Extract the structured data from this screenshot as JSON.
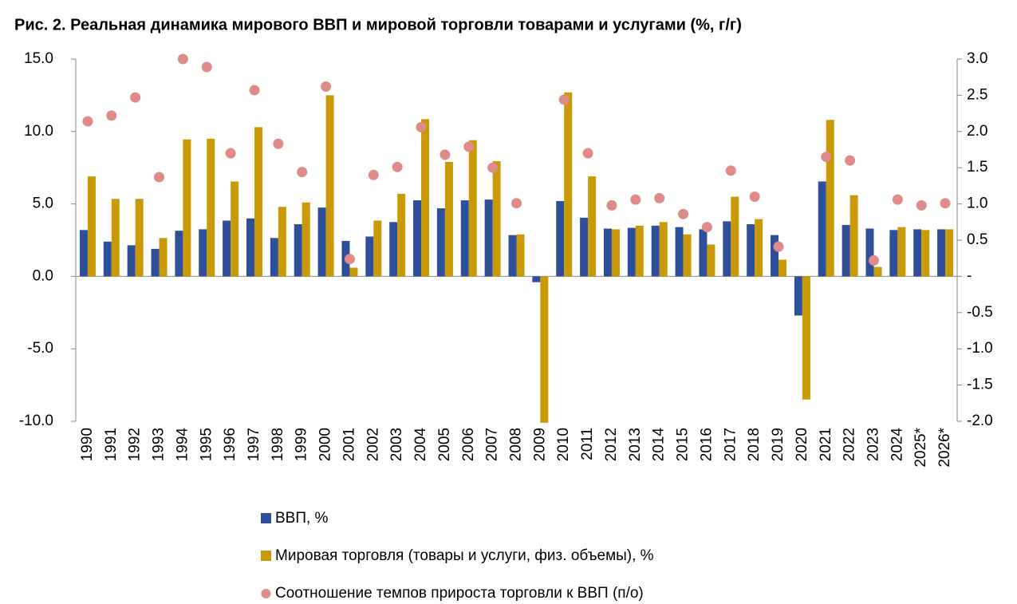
{
  "chart_data": {
    "type": "bar",
    "title": "Рис. 2. Реальная динамика мирового ВВП и мировой торговли товарами и услугами (%, г/г)",
    "categories": [
      "1990",
      "1991",
      "1992",
      "1993",
      "1994",
      "1995",
      "1996",
      "1997",
      "1998",
      "1999",
      "2000",
      "2001",
      "2002",
      "2003",
      "2004",
      "2005",
      "2006",
      "2007",
      "2008",
      "2009",
      "2010",
      "2011",
      "2012",
      "2013",
      "2014",
      "2015",
      "2016",
      "2017",
      "2018",
      "2019",
      "2020",
      "2021",
      "2022",
      "2023",
      "2024",
      "2025*",
      "2026*"
    ],
    "series": [
      {
        "name": "ВВП, %",
        "type": "bar",
        "color": "#2f4f9a",
        "values": [
          3.2,
          2.4,
          2.15,
          1.9,
          3.15,
          3.25,
          3.85,
          4.0,
          2.65,
          3.6,
          4.75,
          2.45,
          2.75,
          3.75,
          5.25,
          4.7,
          5.25,
          5.3,
          2.85,
          -0.4,
          5.2,
          4.05,
          3.3,
          3.35,
          3.5,
          3.4,
          3.25,
          3.8,
          3.6,
          2.85,
          -2.7,
          6.55,
          3.55,
          3.3,
          3.2,
          3.25,
          3.25
        ]
      },
      {
        "name": "Мировая торговля (товары и услуги, физ. объемы), %",
        "type": "bar",
        "color": "#c99a06",
        "values": [
          6.9,
          5.35,
          5.35,
          2.65,
          9.45,
          9.5,
          6.55,
          10.3,
          4.8,
          5.1,
          12.5,
          0.6,
          3.85,
          5.7,
          10.85,
          7.9,
          9.4,
          7.95,
          2.9,
          -10.1,
          12.7,
          6.9,
          3.25,
          3.5,
          3.75,
          2.9,
          2.2,
          5.5,
          3.95,
          1.15,
          -8.5,
          10.8,
          5.6,
          0.65,
          3.4,
          3.2,
          3.25
        ]
      },
      {
        "name": "Соотношение темпов прироста торговли к ВВП (п/о)",
        "type": "scatter",
        "axis": "y2",
        "color": "#e08a8a",
        "values": [
          2.14,
          2.22,
          2.47,
          1.37,
          3.0,
          2.89,
          1.7,
          2.57,
          1.83,
          1.44,
          2.62,
          0.24,
          1.4,
          1.51,
          2.06,
          1.68,
          1.79,
          1.5,
          1.01,
          null,
          2.44,
          1.7,
          0.98,
          1.06,
          1.08,
          0.86,
          0.68,
          1.46,
          1.1,
          0.41,
          null,
          1.65,
          1.6,
          0.22,
          1.06,
          0.98,
          1.01
        ]
      }
    ],
    "ylim": [
      -10,
      15
    ],
    "yticks": [
      {
        "value": 15,
        "label": "15.0"
      },
      {
        "value": 10,
        "label": "10.0"
      },
      {
        "value": 5,
        "label": "5.0"
      },
      {
        "value": 0,
        "label": "0.0"
      },
      {
        "value": -5,
        "label": "-5.0"
      },
      {
        "value": -10,
        "label": "-10.0"
      }
    ],
    "y2lim": [
      -2,
      3
    ],
    "y2ticks": [
      {
        "value": 3,
        "label": "3.0"
      },
      2.5,
      {
        "value": 2,
        "label": "2.0"
      },
      1.5,
      {
        "value": 1,
        "label": "1.0"
      },
      0.5,
      {
        "value": 0,
        "label": "-"
      },
      -0.5,
      {
        "value": -1,
        "label": "-1.0"
      },
      -1.5,
      {
        "value": -2,
        "label": "-2.0"
      }
    ],
    "legend": "bottom"
  }
}
